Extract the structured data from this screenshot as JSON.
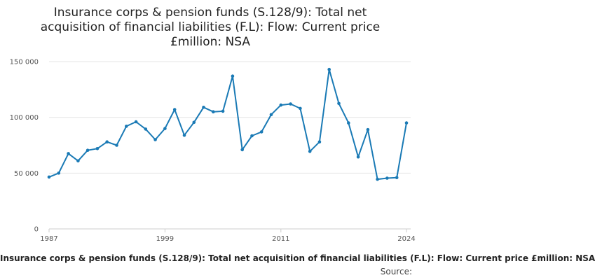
{
  "title_lines": [
    "Insurance corps & pension funds (S.128/9): Total net",
    "acquisition of financial liabilities (F.L): Flow: Current price",
    "£million: NSA"
  ],
  "legend_text": "Insurance corps & pension funds (S.128/9): Total net acquisition of financial liabilities (F.L): Flow: Current price £million: NSA",
  "source_label": "Source:",
  "colors": {
    "series": "#1a7ab5",
    "grid": "#e6e6e6",
    "axis": "#cccccc"
  },
  "chart_data": {
    "type": "line",
    "title": "Insurance corps & pension funds (S.128/9): Total net acquisition of financial liabilities (F.L): Flow: Current price £million: NSA",
    "xlabel": "",
    "ylabel": "",
    "xlim": [
      1987,
      2024
    ],
    "ylim": [
      0,
      150000
    ],
    "x_ticks": [
      1987,
      1999,
      2011,
      2024
    ],
    "x_tick_labels": [
      "1987",
      "1999",
      "2011",
      "2024"
    ],
    "y_ticks": [
      0,
      50000,
      100000,
      150000
    ],
    "y_tick_labels": [
      "0",
      "50 000",
      "100 000",
      "150 000"
    ],
    "grid": true,
    "series": [
      {
        "name": "Insurance corps & pension funds (S.128/9): Total net acquisition of financial liabilities (F.L): Flow: Current price £million: NSA",
        "x": [
          1987,
          1988,
          1989,
          1990,
          1991,
          1992,
          1993,
          1994,
          1995,
          1996,
          1997,
          1998,
          1999,
          2000,
          2001,
          2002,
          2003,
          2004,
          2005,
          2006,
          2007,
          2008,
          2009,
          2010,
          2011,
          2012,
          2013,
          2014,
          2015,
          2016,
          2017,
          2018,
          2019,
          2020,
          2021,
          2022,
          2023,
          2024
        ],
        "values": [
          46500,
          50000,
          67500,
          61000,
          70500,
          72000,
          78000,
          75000,
          92000,
          96000,
          89500,
          80000,
          90000,
          107000,
          84000,
          95500,
          109000,
          105000,
          105500,
          137000,
          71000,
          83500,
          87000,
          102500,
          111000,
          112000,
          108000,
          69500,
          78000,
          143000,
          112500,
          95000,
          64500,
          89000,
          44500,
          45500,
          46000,
          95000
        ]
      }
    ]
  }
}
